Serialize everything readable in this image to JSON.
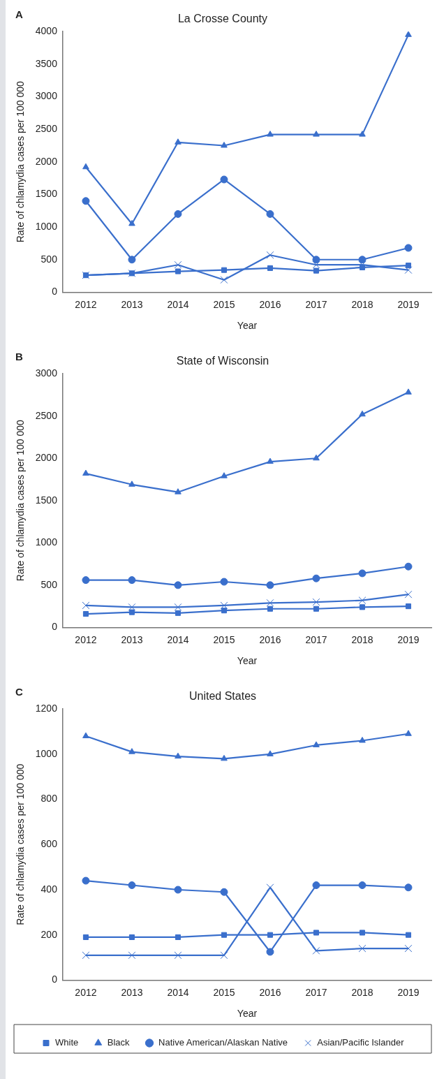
{
  "chart_data": [
    {
      "type": "line",
      "title": "La Crosse County",
      "annotations": [
        "A"
      ],
      "xlabel": "Year",
      "ylabel": "Rate of chlamydia cases per 100 000",
      "categories": [
        "2012",
        "2013",
        "2014",
        "2015",
        "2016",
        "2017",
        "2018",
        "2019"
      ],
      "ylim": [
        0,
        4000
      ],
      "yticks": [
        0,
        500,
        1000,
        1500,
        2000,
        2500,
        3000,
        3500,
        4000
      ],
      "grid": false,
      "legend": false,
      "series": [
        {
          "color": "#3a6fcc",
          "marker": "square",
          "values": [
            260,
            290,
            320,
            340,
            370,
            330,
            380,
            410
          ]
        },
        {
          "color": "#3a6fcc",
          "marker": "triangle",
          "values": [
            1920,
            1050,
            2300,
            2250,
            2420,
            2420,
            2420,
            3950
          ]
        },
        {
          "color": "#3a6fcc",
          "marker": "circle",
          "values": [
            1400,
            500,
            1200,
            1730,
            1200,
            500,
            500,
            680
          ]
        },
        {
          "color": "#3a6fcc",
          "marker": "cross",
          "values": [
            260,
            290,
            420,
            190,
            570,
            420,
            420,
            340
          ]
        }
      ]
    },
    {
      "type": "line",
      "title": "State of Wisconsin",
      "annotations": [
        "B"
      ],
      "xlabel": "Year",
      "ylabel": "Rate of chlamydia cases per 100 000",
      "categories": [
        "2012",
        "2013",
        "2014",
        "2015",
        "2016",
        "2017",
        "2018",
        "2019"
      ],
      "ylim": [
        0,
        3000
      ],
      "yticks": [
        0,
        500,
        1000,
        1500,
        2000,
        2500,
        3000
      ],
      "grid": false,
      "legend": false,
      "series": [
        {
          "color": "#3a6fcc",
          "marker": "square",
          "values": [
            160,
            180,
            170,
            200,
            220,
            220,
            240,
            250
          ]
        },
        {
          "color": "#3a6fcc",
          "marker": "triangle",
          "values": [
            1820,
            1690,
            1600,
            1790,
            1960,
            2000,
            2520,
            2780
          ]
        },
        {
          "color": "#3a6fcc",
          "marker": "circle",
          "values": [
            560,
            560,
            500,
            540,
            500,
            580,
            640,
            720
          ]
        },
        {
          "color": "#3a6fcc",
          "marker": "cross",
          "values": [
            260,
            240,
            240,
            260,
            290,
            300,
            320,
            390
          ]
        }
      ]
    },
    {
      "type": "line",
      "title": "United States",
      "annotations": [
        "C"
      ],
      "xlabel": "Year",
      "ylabel": "Rate of chlamydia cases per 100 000",
      "categories": [
        "2012",
        "2013",
        "2014",
        "2015",
        "2016",
        "2017",
        "2018",
        "2019"
      ],
      "ylim": [
        0,
        1200
      ],
      "yticks": [
        0,
        200,
        400,
        600,
        800,
        1000,
        1200
      ],
      "grid": false,
      "legend": "bottom",
      "series": [
        {
          "name": "White",
          "color": "#3a6fcc",
          "marker": "square",
          "values": [
            190,
            190,
            190,
            200,
            200,
            210,
            210,
            200
          ]
        },
        {
          "name": "Black",
          "color": "#3a6fcc",
          "marker": "triangle",
          "values": [
            1080,
            1010,
            990,
            980,
            1000,
            1040,
            1060,
            1090
          ]
        },
        {
          "name": "Native American/Alaskan Native",
          "color": "#3a6fcc",
          "marker": "circle",
          "values": [
            440,
            420,
            400,
            390,
            125,
            420,
            420,
            410
          ]
        },
        {
          "name": "Asian/Pacific Islander",
          "color": "#3a6fcc",
          "marker": "cross",
          "values": [
            110,
            110,
            110,
            110,
            410,
            130,
            140,
            140
          ]
        }
      ]
    }
  ]
}
